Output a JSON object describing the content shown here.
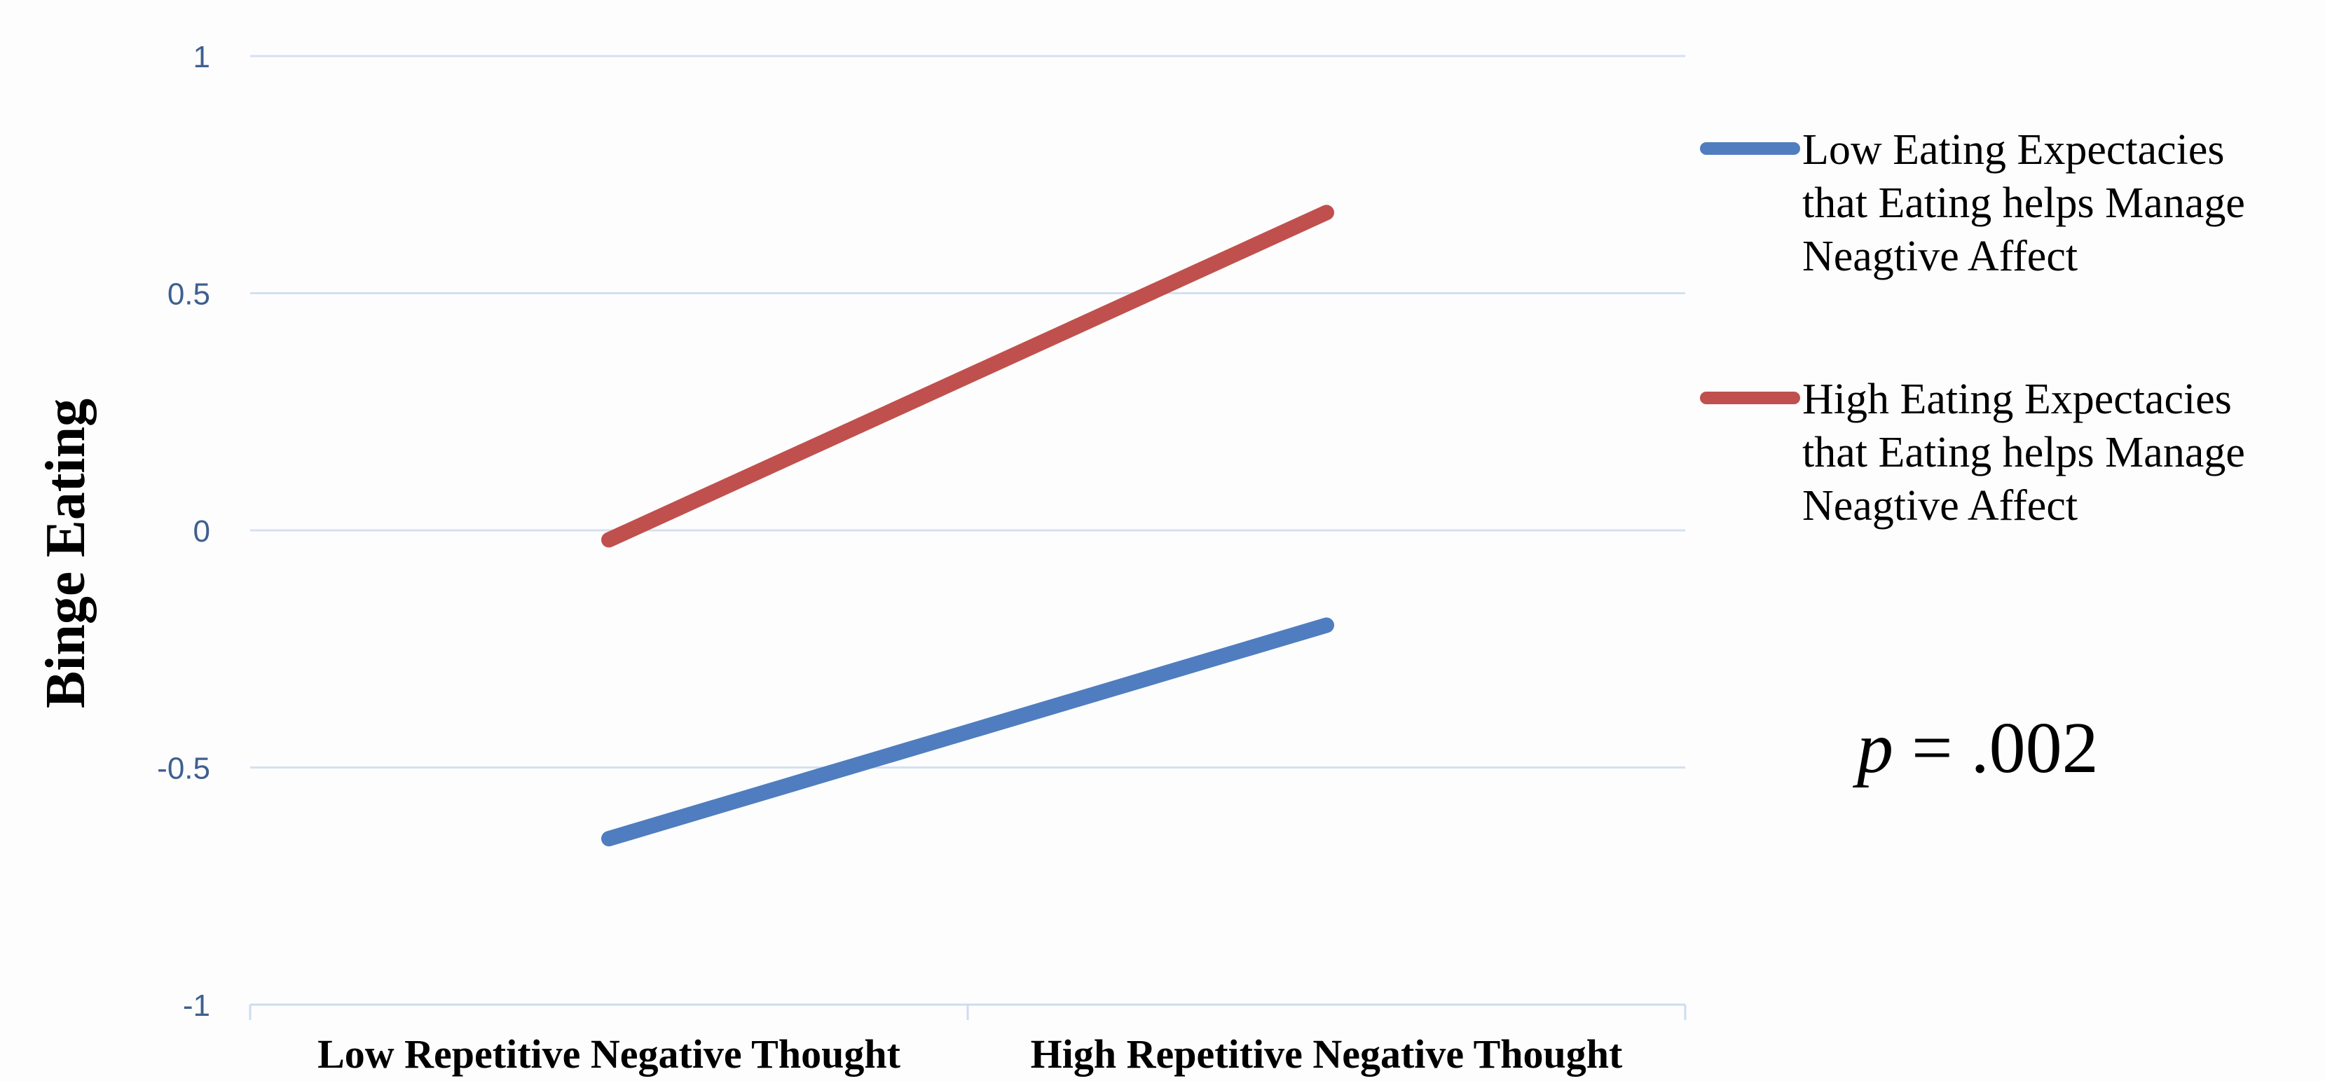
{
  "chart_data": {
    "type": "line",
    "categories": [
      "Low Repetitive Negative Thought",
      "High Repetitive Negative Thought"
    ],
    "series": [
      {
        "name": "Low Eating Expectacies that Eating helps Manage Neagtive Affect",
        "name_lines": [
          "Low Eating Expectacies",
          "that Eating helps Manage",
          "Neagtive Affect"
        ],
        "values": [
          -0.65,
          -0.2
        ],
        "color": "#4f7dbf"
      },
      {
        "name": "High Eating Expectacies that Eating helps Manage Neagtive Affect",
        "name_lines": [
          "High Eating Expectacies",
          "that Eating helps Manage",
          "Neagtive Affect"
        ],
        "values": [
          -0.02,
          0.67
        ],
        "color": "#c0504d"
      }
    ],
    "title": "",
    "xlabel": "",
    "ylabel": "Binge Eating",
    "ylim": [
      -1,
      1
    ],
    "yticks": [
      1,
      0.5,
      0,
      -0.5,
      -1
    ],
    "ytick_labels": [
      "1",
      "0.5",
      "0",
      "-0.5",
      "-1"
    ],
    "grid": true,
    "legend": "right",
    "annotation": {
      "italic": "p",
      "rest": " = .002"
    }
  },
  "colors": {
    "gridline": "#d5e1f0",
    "axis_line": "#cfdced",
    "tick_text": "#3f5f8f"
  }
}
